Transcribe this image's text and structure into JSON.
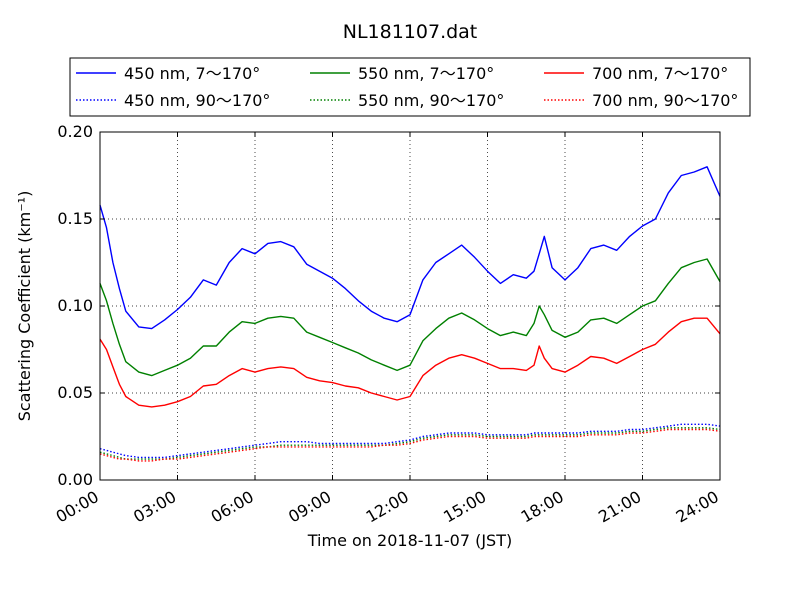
{
  "chart_data": {
    "type": "line",
    "title": "NL181107.dat",
    "xlabel": "Time on 2018-11-07 (JST)",
    "ylabel": "Scattering Coefficient (km⁻¹)",
    "xlim": [
      0,
      24
    ],
    "ylim": [
      0,
      0.2
    ],
    "x_ticks": [
      "00:00",
      "03:00",
      "06:00",
      "09:00",
      "12:00",
      "15:00",
      "18:00",
      "21:00",
      "24:00"
    ],
    "y_ticks": [
      "0.00",
      "0.05",
      "0.10",
      "0.15",
      "0.20"
    ],
    "grid": true,
    "legend_position": "top",
    "x_hours": [
      0,
      0.25,
      0.5,
      0.75,
      1,
      1.5,
      2,
      2.5,
      3,
      3.5,
      4,
      4.5,
      5,
      5.5,
      6,
      6.5,
      7,
      7.5,
      8,
      8.5,
      9,
      9.5,
      10,
      10.5,
      11,
      11.5,
      12,
      12.5,
      13,
      13.5,
      14,
      14.5,
      15,
      15.5,
      16,
      16.5,
      16.8,
      17,
      17.2,
      17.5,
      18,
      18.5,
      19,
      19.5,
      20,
      20.5,
      21,
      21.5,
      22,
      22.5,
      23,
      23.5,
      24
    ],
    "series": [
      {
        "name": "450 nm, 7～170°",
        "color": "#0000ff",
        "style": "solid",
        "values": [
          0.158,
          0.145,
          0.125,
          0.11,
          0.097,
          0.088,
          0.087,
          0.092,
          0.098,
          0.105,
          0.115,
          0.112,
          0.125,
          0.133,
          0.13,
          0.136,
          0.137,
          0.134,
          0.124,
          0.12,
          0.116,
          0.11,
          0.103,
          0.097,
          0.093,
          0.091,
          0.095,
          0.115,
          0.125,
          0.13,
          0.135,
          0.128,
          0.12,
          0.113,
          0.118,
          0.116,
          0.12,
          0.13,
          0.14,
          0.122,
          0.115,
          0.122,
          0.133,
          0.135,
          0.132,
          0.14,
          0.146,
          0.15,
          0.165,
          0.175,
          0.177,
          0.18,
          0.163
        ]
      },
      {
        "name": "550 nm, 7～170°",
        "color": "#008000",
        "style": "solid",
        "values": [
          0.113,
          0.103,
          0.09,
          0.078,
          0.068,
          0.062,
          0.06,
          0.063,
          0.066,
          0.07,
          0.077,
          0.077,
          0.085,
          0.091,
          0.09,
          0.093,
          0.094,
          0.093,
          0.085,
          0.082,
          0.079,
          0.076,
          0.073,
          0.069,
          0.066,
          0.063,
          0.066,
          0.08,
          0.087,
          0.093,
          0.096,
          0.092,
          0.087,
          0.083,
          0.085,
          0.083,
          0.09,
          0.1,
          0.095,
          0.086,
          0.082,
          0.085,
          0.092,
          0.093,
          0.09,
          0.095,
          0.1,
          0.103,
          0.113,
          0.122,
          0.125,
          0.127,
          0.114
        ]
      },
      {
        "name": "700 nm, 7～170°",
        "color": "#ff0000",
        "style": "solid",
        "values": [
          0.081,
          0.075,
          0.065,
          0.055,
          0.048,
          0.043,
          0.042,
          0.043,
          0.045,
          0.048,
          0.054,
          0.055,
          0.06,
          0.064,
          0.062,
          0.064,
          0.065,
          0.064,
          0.059,
          0.057,
          0.056,
          0.054,
          0.053,
          0.05,
          0.048,
          0.046,
          0.048,
          0.06,
          0.066,
          0.07,
          0.072,
          0.07,
          0.067,
          0.064,
          0.064,
          0.063,
          0.066,
          0.077,
          0.07,
          0.064,
          0.062,
          0.066,
          0.071,
          0.07,
          0.067,
          0.071,
          0.075,
          0.078,
          0.085,
          0.091,
          0.093,
          0.093,
          0.084
        ]
      },
      {
        "name": "450 nm, 90～170°",
        "color": "#0000ff",
        "style": "dotted",
        "values": [
          0.018,
          0.017,
          0.016,
          0.015,
          0.014,
          0.013,
          0.013,
          0.013,
          0.014,
          0.015,
          0.016,
          0.017,
          0.018,
          0.019,
          0.02,
          0.021,
          0.022,
          0.022,
          0.022,
          0.021,
          0.021,
          0.021,
          0.021,
          0.021,
          0.021,
          0.022,
          0.023,
          0.025,
          0.026,
          0.027,
          0.027,
          0.027,
          0.026,
          0.026,
          0.026,
          0.026,
          0.027,
          0.027,
          0.027,
          0.027,
          0.027,
          0.027,
          0.028,
          0.028,
          0.028,
          0.029,
          0.029,
          0.03,
          0.031,
          0.032,
          0.032,
          0.032,
          0.031
        ]
      },
      {
        "name": "550 nm, 90～170°",
        "color": "#008000",
        "style": "dotted",
        "values": [
          0.016,
          0.015,
          0.014,
          0.013,
          0.012,
          0.012,
          0.012,
          0.012,
          0.013,
          0.014,
          0.015,
          0.016,
          0.017,
          0.018,
          0.019,
          0.019,
          0.02,
          0.02,
          0.02,
          0.02,
          0.02,
          0.02,
          0.02,
          0.02,
          0.02,
          0.021,
          0.022,
          0.024,
          0.025,
          0.026,
          0.026,
          0.026,
          0.025,
          0.025,
          0.025,
          0.025,
          0.026,
          0.026,
          0.026,
          0.026,
          0.026,
          0.026,
          0.027,
          0.027,
          0.027,
          0.028,
          0.028,
          0.029,
          0.03,
          0.03,
          0.03,
          0.03,
          0.029
        ]
      },
      {
        "name": "700 nm, 90～170°",
        "color": "#ff0000",
        "style": "dotted",
        "values": [
          0.015,
          0.014,
          0.013,
          0.012,
          0.012,
          0.011,
          0.011,
          0.012,
          0.012,
          0.013,
          0.014,
          0.015,
          0.016,
          0.017,
          0.018,
          0.019,
          0.019,
          0.019,
          0.019,
          0.019,
          0.019,
          0.019,
          0.019,
          0.019,
          0.02,
          0.02,
          0.021,
          0.023,
          0.024,
          0.025,
          0.025,
          0.025,
          0.024,
          0.024,
          0.024,
          0.024,
          0.025,
          0.025,
          0.025,
          0.025,
          0.025,
          0.025,
          0.026,
          0.026,
          0.026,
          0.027,
          0.027,
          0.028,
          0.029,
          0.029,
          0.029,
          0.029,
          0.028
        ]
      }
    ],
    "legend": {
      "columns": [
        [
          "450 nm, 7～170°",
          "450 nm, 90～170°"
        ],
        [
          "550 nm, 7～170°",
          "550 nm, 90～170°"
        ],
        [
          "700 nm, 7～170°",
          "700 nm, 90～170°"
        ]
      ]
    }
  }
}
